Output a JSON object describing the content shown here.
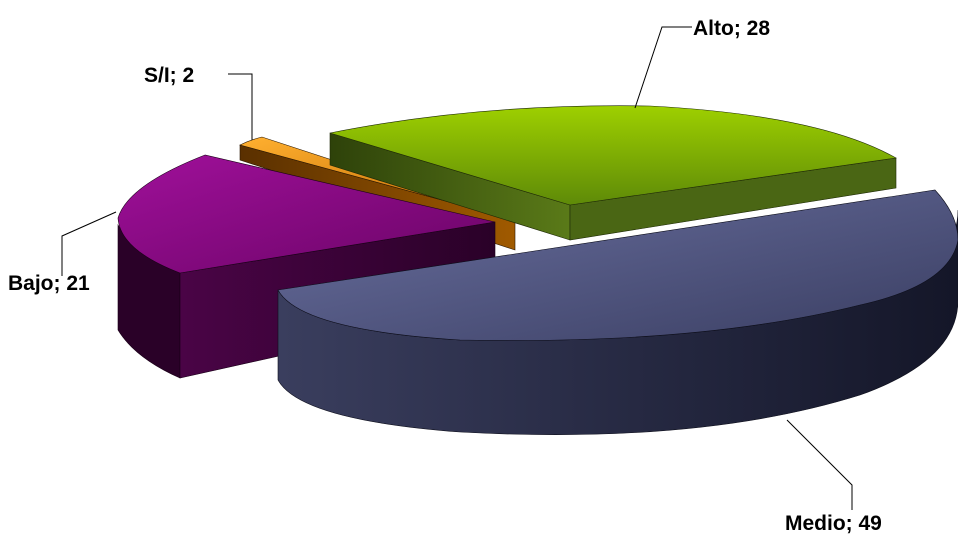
{
  "chart_data": {
    "type": "pie",
    "style": "3d-exploded",
    "title": "",
    "slices": [
      {
        "label": "Alto",
        "value": 28,
        "text": "Alto; 28",
        "color": "#8CC000",
        "side_color": "#3C5210"
      },
      {
        "label": "Medio",
        "value": 49,
        "text": "Medio; 49",
        "color": "#575D86",
        "side_color": "#23263E"
      },
      {
        "label": "Bajo",
        "value": 21,
        "text": "Bajo; 21",
        "color": "#8A0A84",
        "side_color": "#3A0238"
      },
      {
        "label": "S/I",
        "value": 2,
        "text": "S/I; 2",
        "color": "#F09A10",
        "side_color": "#6A3800"
      }
    ],
    "legend": "none",
    "data_labels": "outside-with-leader-lines"
  }
}
